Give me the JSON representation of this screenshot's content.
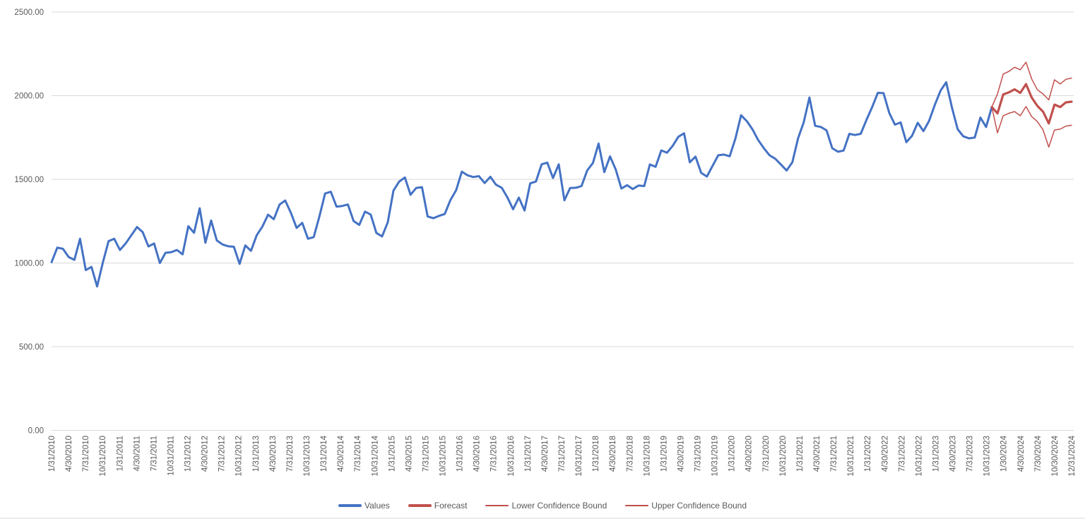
{
  "chart_data": {
    "type": "line",
    "title": "",
    "xlabel": "",
    "ylabel": "",
    "background_color": "#ffffff",
    "grid_color": "#d9d9d9",
    "axis_text_color": "#595959",
    "grid_on": true,
    "legend_position": "bottom",
    "total_points": 180,
    "y_axis": {
      "min": 0,
      "max": 2500,
      "step": 500,
      "ticks": [
        2500,
        2000,
        1500,
        1000,
        500,
        0
      ],
      "tick_labels": [
        "2500.00",
        "2000.00",
        "1500.00",
        "1000.00",
        "500.00",
        "0.00"
      ]
    },
    "x_axis": {
      "label_rotation": -90,
      "labels": [
        "1/31/2010",
        "4/30/2010",
        "7/31/2010",
        "10/31/2010",
        "1/31/2011",
        "4/30/2011",
        "7/31/2011",
        "10/31/2011",
        "1/31/2012",
        "4/30/2012",
        "7/31/2012",
        "10/31/2012",
        "1/31/2013",
        "4/30/2013",
        "7/31/2013",
        "10/31/2013",
        "1/31/2014",
        "4/30/2014",
        "7/31/2014",
        "10/31/2014",
        "1/31/2015",
        "4/30/2015",
        "7/31/2015",
        "10/31/2015",
        "1/31/2016",
        "4/30/2016",
        "7/31/2016",
        "10/31/2016",
        "1/31/2017",
        "4/30/2017",
        "7/31/2017",
        "10/31/2017",
        "1/31/2018",
        "4/30/2018",
        "7/31/2018",
        "10/31/2018",
        "1/31/2019",
        "4/30/2019",
        "7/31/2019",
        "10/31/2019",
        "1/31/2020",
        "4/30/2020",
        "7/31/2020",
        "10/31/2020",
        "1/31/2021",
        "4/30/2021",
        "7/31/2021",
        "10/31/2021",
        "1/31/2022",
        "4/30/2022",
        "7/31/2022",
        "10/31/2022",
        "1/31/2023",
        "4/30/2023",
        "7/31/2023",
        "10/31/2023",
        "1/30/2024",
        "4/30/2024",
        "7/30/2024",
        "10/30/2024",
        "12/31/2024"
      ]
    },
    "series": [
      {
        "name": "Values",
        "color": "#4472C4",
        "width": 3,
        "start_index": 0,
        "values": [
          1005,
          1092,
          1085,
          1036,
          1019,
          1145,
          958,
          977,
          860,
          1003,
          1131,
          1145,
          1078,
          1117,
          1166,
          1215,
          1184,
          1099,
          1117,
          1000,
          1061,
          1065,
          1078,
          1052,
          1220,
          1181,
          1327,
          1121,
          1254,
          1135,
          1111,
          1100,
          1097,
          995,
          1105,
          1073,
          1166,
          1218,
          1289,
          1262,
          1349,
          1374,
          1300,
          1210,
          1240,
          1145,
          1155,
          1279,
          1415,
          1426,
          1337,
          1341,
          1350,
          1251,
          1228,
          1307,
          1290,
          1180,
          1159,
          1244,
          1433,
          1487,
          1511,
          1408,
          1449,
          1453,
          1278,
          1268,
          1282,
          1293,
          1377,
          1436,
          1546,
          1524,
          1514,
          1519,
          1478,
          1515,
          1468,
          1450,
          1391,
          1321,
          1391,
          1314,
          1476,
          1487,
          1590,
          1600,
          1508,
          1590,
          1375,
          1448,
          1450,
          1460,
          1553,
          1598,
          1714,
          1543,
          1637,
          1560,
          1445,
          1465,
          1442,
          1463,
          1460,
          1589,
          1575,
          1673,
          1659,
          1700,
          1755,
          1775,
          1602,
          1636,
          1539,
          1517,
          1581,
          1644,
          1648,
          1638,
          1742,
          1883,
          1848,
          1799,
          1735,
          1686,
          1644,
          1623,
          1588,
          1553,
          1602,
          1745,
          1841,
          1989,
          1820,
          1813,
          1793,
          1686,
          1665,
          1672,
          1772,
          1765,
          1772,
          1855,
          1932,
          2017,
          2015,
          1897,
          1827,
          1840,
          1722,
          1760,
          1838,
          1788,
          1850,
          1945,
          2030,
          2080,
          1930,
          1800,
          1757,
          1745,
          1750,
          1869,
          1813,
          1932
        ]
      },
      {
        "name": "Forecast",
        "color": "#C0504D",
        "width": 3.2,
        "start_index": 165,
        "values": [
          1932,
          1894,
          2007,
          2020,
          2038,
          2017,
          2069,
          1989,
          1939,
          1904,
          1834,
          1947,
          1932,
          1960,
          1964
        ]
      },
      {
        "name": "Lower Confidence Bound",
        "color": "#C0504D",
        "width": 1.5,
        "start_index": 165,
        "values": [
          1932,
          1778,
          1880,
          1895,
          1905,
          1880,
          1935,
          1875,
          1845,
          1795,
          1693,
          1795,
          1800,
          1818,
          1823
        ]
      },
      {
        "name": "Upper Confidence Bound",
        "color": "#C0504D",
        "width": 1.5,
        "start_index": 165,
        "values": [
          1932,
          2010,
          2129,
          2145,
          2170,
          2155,
          2200,
          2100,
          2035,
          2010,
          1975,
          2095,
          2070,
          2098,
          2105
        ]
      }
    ]
  }
}
